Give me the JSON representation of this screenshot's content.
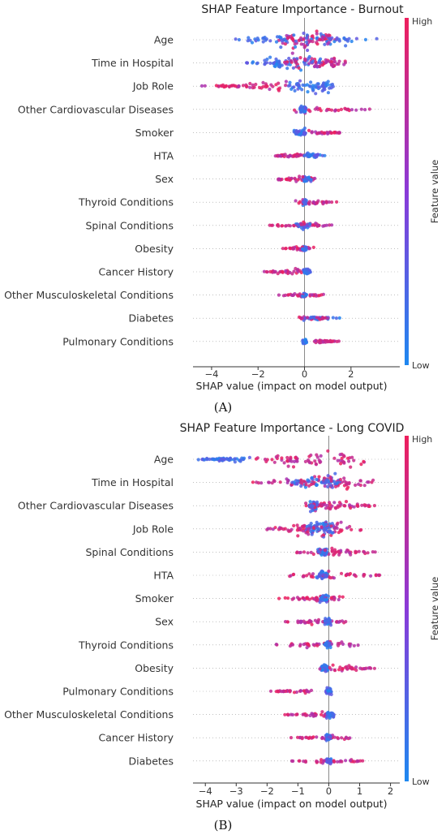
{
  "chart_data": [
    {
      "type": "scatter",
      "subtype": "shap-beeswarm",
      "title": "SHAP Feature Importance - Burnout",
      "xlabel": "SHAP value (impact on model output)",
      "xlim": [
        -4.8,
        4.1
      ],
      "xticks": [
        -4,
        -2,
        0,
        2
      ],
      "colorbar": {
        "title": "Feature value",
        "high_label": "High",
        "low_label": "Low",
        "low_color": "#1e88f0",
        "mid_color": "#8a3ad8",
        "high_color": "#ee1f5c"
      },
      "features": [
        {
          "name": "Age",
          "min": -3.1,
          "max": 3.4,
          "lo_min": -3.1,
          "lo_max": 3.4,
          "hi_min": -1.2,
          "hi_max": 1.6,
          "spread": 1.6
        },
        {
          "name": "Time in Hospital",
          "min": -2.8,
          "max": 2.2,
          "lo_min": -2.8,
          "lo_max": 1.0,
          "hi_min": -1.0,
          "hi_max": 2.2,
          "spread": 1.4
        },
        {
          "name": "Job Role",
          "min": -4.5,
          "max": 1.4,
          "lo_min": -0.8,
          "lo_max": 1.4,
          "hi_min": -4.5,
          "hi_max": -0.5,
          "spread": 1.2
        },
        {
          "name": "Other Cardiovascular Diseases",
          "min": -1.4,
          "max": 3.0,
          "lo_min": -0.2,
          "lo_max": 0.1,
          "hi_min": -1.0,
          "hi_max": 3.0,
          "spread": 0.6
        },
        {
          "name": "Smoker",
          "min": -0.5,
          "max": 1.7,
          "lo_min": -0.5,
          "lo_max": 0.1,
          "hi_min": 0.0,
          "hi_max": 1.7,
          "spread": 0.6
        },
        {
          "name": "HTA",
          "min": -1.5,
          "max": 0.9,
          "lo_min": -0.1,
          "lo_max": 0.9,
          "hi_min": -1.5,
          "hi_max": 0.0,
          "spread": 0.5
        },
        {
          "name": "Sex",
          "min": -1.5,
          "max": 0.9,
          "lo_min": -0.1,
          "lo_max": 0.3,
          "hi_min": -1.5,
          "hi_max": 0.9,
          "spread": 0.5
        },
        {
          "name": "Thyroid Conditions",
          "min": -0.5,
          "max": 1.6,
          "lo_min": -0.1,
          "lo_max": 0.1,
          "hi_min": -0.5,
          "hi_max": 1.6,
          "spread": 0.5
        },
        {
          "name": "Spinal Conditions",
          "min": -1.7,
          "max": 1.3,
          "lo_min": -0.4,
          "lo_max": 0.3,
          "hi_min": -1.7,
          "hi_max": 1.3,
          "spread": 0.5
        },
        {
          "name": "Obesity",
          "min": -1.1,
          "max": 0.6,
          "lo_min": -0.1,
          "lo_max": 0.1,
          "hi_min": -1.1,
          "hi_max": 0.6,
          "spread": 0.4
        },
        {
          "name": "Cancer History",
          "min": -1.9,
          "max": 0.3,
          "lo_min": -0.1,
          "lo_max": 0.3,
          "hi_min": -1.9,
          "hi_max": 0.0,
          "spread": 0.5
        },
        {
          "name": "Other Musculoskeletal Conditions",
          "min": -1.2,
          "max": 0.9,
          "lo_min": -0.1,
          "lo_max": 0.1,
          "hi_min": -1.2,
          "hi_max": 0.9,
          "spread": 0.4
        },
        {
          "name": "Diabetes",
          "min": -0.4,
          "max": 1.6,
          "lo_min": -0.1,
          "lo_max": 1.6,
          "hi_min": -0.4,
          "hi_max": 1.1,
          "spread": 0.4
        },
        {
          "name": "Pulmonary Conditions",
          "min": -0.1,
          "max": 1.6,
          "lo_min": -0.1,
          "lo_max": 0.1,
          "hi_min": 0.2,
          "hi_max": 1.6,
          "spread": 0.4
        }
      ]
    },
    {
      "type": "scatter",
      "subtype": "shap-beeswarm",
      "title": "SHAP Feature Importance - Long COVID",
      "xlabel": "SHAP value (impact on model output)",
      "xlim": [
        -4.4,
        2.3
      ],
      "xticks": [
        -4,
        -3,
        -2,
        -1,
        0,
        1,
        2
      ],
      "colorbar": {
        "title": "Feature value",
        "high_label": "High",
        "low_label": "Low",
        "low_color": "#1e88f0",
        "mid_color": "#8a3ad8",
        "high_color": "#ee1f5c"
      },
      "features": [
        {
          "name": "Age",
          "min": -4.3,
          "max": 1.6,
          "lo_min": -4.3,
          "lo_max": -2.5,
          "hi_min": -2.6,
          "hi_max": 1.6,
          "spread": 1.4
        },
        {
          "name": "Time in Hospital",
          "min": -2.6,
          "max": 1.8,
          "lo_min": -1.5,
          "lo_max": 0.5,
          "hi_min": -2.6,
          "hi_max": 1.8,
          "spread": 1.4
        },
        {
          "name": "Other Cardiovascular Diseases",
          "min": -1.0,
          "max": 1.7,
          "lo_min": -0.7,
          "lo_max": -0.3,
          "hi_min": -1.0,
          "hi_max": 1.7,
          "spread": 0.9
        },
        {
          "name": "Job Role",
          "min": -2.2,
          "max": 1.2,
          "lo_min": -0.8,
          "lo_max": 0.3,
          "hi_min": -2.2,
          "hi_max": 1.2,
          "spread": 1.5
        },
        {
          "name": "Spinal Conditions",
          "min": -1.4,
          "max": 1.8,
          "lo_min": -0.4,
          "lo_max": 0.0,
          "hi_min": -1.4,
          "hi_max": 1.8,
          "spread": 0.7
        },
        {
          "name": "HTA",
          "min": -1.4,
          "max": 1.9,
          "lo_min": -0.4,
          "lo_max": 0.0,
          "hi_min": -1.4,
          "hi_max": 1.9,
          "spread": 0.7
        },
        {
          "name": "Smoker",
          "min": -1.8,
          "max": 0.7,
          "lo_min": -0.3,
          "lo_max": 0.0,
          "hi_min": -1.8,
          "hi_max": 0.7,
          "spread": 0.6
        },
        {
          "name": "Sex",
          "min": -1.6,
          "max": 0.8,
          "lo_min": -0.2,
          "lo_max": 0.1,
          "hi_min": -1.6,
          "hi_max": 0.8,
          "spread": 0.6
        },
        {
          "name": "Thyroid Conditions",
          "min": -1.9,
          "max": 1.2,
          "lo_min": -0.2,
          "lo_max": 0.1,
          "hi_min": -1.9,
          "hi_max": 1.2,
          "spread": 0.6
        },
        {
          "name": "Obesity",
          "min": -0.4,
          "max": 1.6,
          "lo_min": -0.3,
          "lo_max": 0.0,
          "hi_min": -0.4,
          "hi_max": 1.6,
          "spread": 0.6
        },
        {
          "name": "Pulmonary Conditions",
          "min": -2.0,
          "max": 0.3,
          "lo_min": -0.1,
          "lo_max": 0.1,
          "hi_min": -2.0,
          "hi_max": -0.4,
          "spread": 0.5
        },
        {
          "name": "Other Musculoskeletal Conditions",
          "min": -1.5,
          "max": 0.3,
          "lo_min": -0.1,
          "lo_max": 0.2,
          "hi_min": -1.5,
          "hi_max": 0.3,
          "spread": 0.5
        },
        {
          "name": "Cancer History",
          "min": -1.4,
          "max": 0.9,
          "lo_min": -0.1,
          "lo_max": 0.1,
          "hi_min": -1.4,
          "hi_max": 0.9,
          "spread": 0.5
        },
        {
          "name": "Diabetes",
          "min": -1.4,
          "max": 1.4,
          "lo_min": -0.1,
          "lo_max": 0.1,
          "hi_min": -1.4,
          "hi_max": 1.4,
          "spread": 0.5
        }
      ]
    }
  ],
  "panel_labels": [
    "(A)",
    "(B)"
  ]
}
